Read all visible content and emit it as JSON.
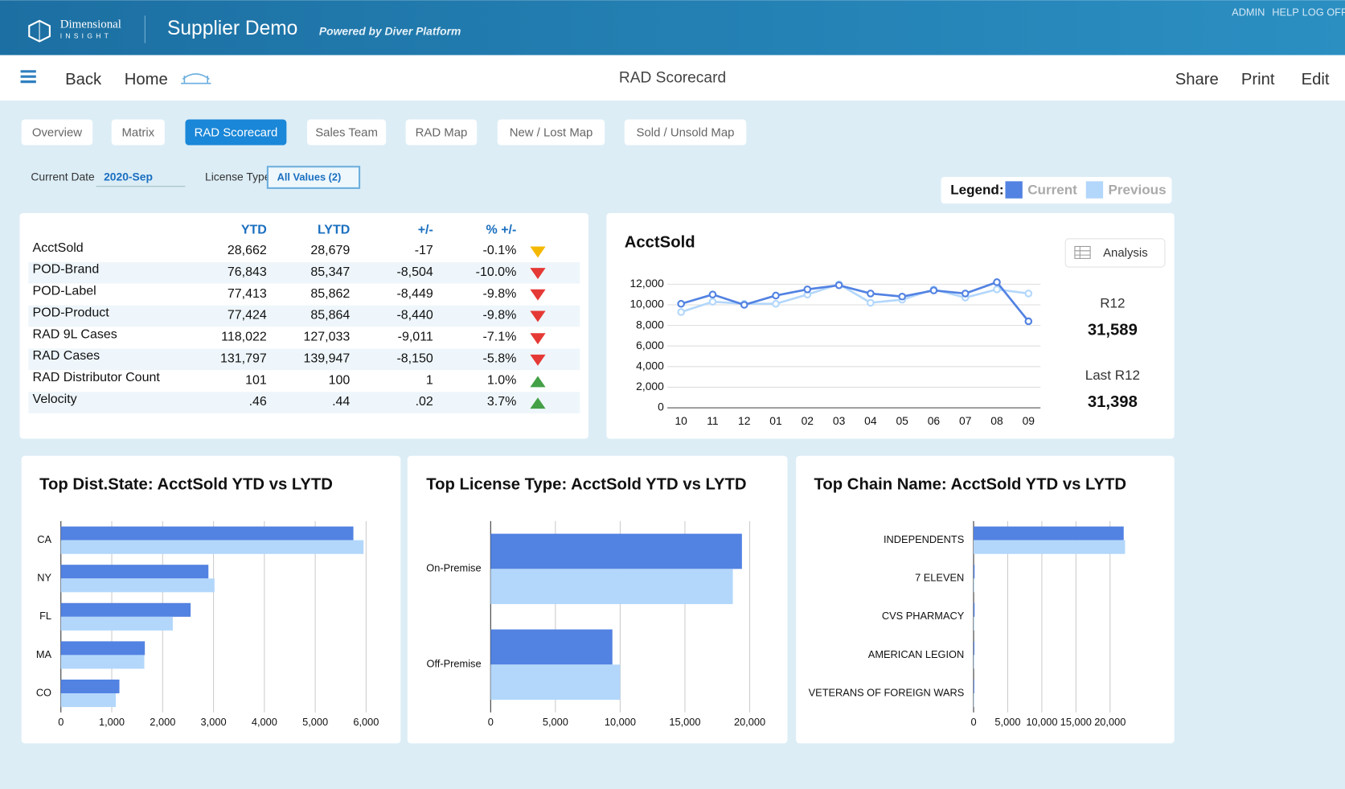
{
  "header": {
    "logo": "Dimensional",
    "logo_sub": "INSIGHT",
    "title": "Supplier Demo",
    "subtitle": "Powered by Diver Platform",
    "links": [
      "ADMIN",
      "HELP",
      "LOG OFF"
    ]
  },
  "nav": {
    "back": "Back",
    "home": "Home",
    "page_title": "RAD Scorecard",
    "actions": [
      "Share",
      "Print",
      "Edit"
    ]
  },
  "tabs": [
    "Overview",
    "Matrix",
    "RAD Scorecard",
    "Sales Team",
    "RAD Map",
    "New / Lost Map",
    "Sold / Unsold Map"
  ],
  "filters": {
    "date_label": "Current Date",
    "date_value": "2020-Sep",
    "license_label": "License Type",
    "license_value": "All Values (2)"
  },
  "legend": {
    "label": "Legend:",
    "current": "Current",
    "previous": "Previous"
  },
  "table": {
    "headers": [
      "YTD",
      "LYTD",
      "+/-",
      "% +/-"
    ],
    "rows": [
      [
        "AcctSold",
        "28,662",
        "28,679",
        "-17",
        "-0.1%"
      ],
      [
        "POD-Brand",
        "76,843",
        "85,347",
        "-8,504",
        "-10.0%"
      ],
      [
        "POD-Label",
        "77,413",
        "85,862",
        "-8,449",
        "-9.8%"
      ],
      [
        "POD-Product",
        "77,424",
        "85,864",
        "-8,440",
        "-9.8%"
      ],
      [
        "RAD 9L Cases",
        "118,022",
        "127,033",
        "-9,011",
        "-7.1%"
      ],
      [
        "RAD Cases",
        "131,797",
        "139,947",
        "-8,150",
        "-5.8%"
      ],
      [
        "RAD Distributor Count",
        "101",
        "100",
        "1",
        "1.0%"
      ],
      [
        "Velocity",
        ".46",
        ".44",
        ".02",
        "3.7%"
      ]
    ]
  },
  "summary": {
    "button": "Analysis",
    "r12_label": "R12",
    "r12_value": "31,589",
    "last_r12_label": "Last R12",
    "last_r12_value": "31,398"
  },
  "chart_data": [
    {
      "type": "line",
      "title": "AcctSold",
      "categories": [
        "10",
        "11",
        "12",
        "01",
        "02",
        "03",
        "04",
        "05",
        "06",
        "07",
        "08",
        "09"
      ],
      "series": [
        {
          "name": "Current",
          "color": "#5282e2",
          "values": [
            10100,
            11000,
            10000,
            10900,
            11500,
            11900,
            11100,
            10800,
            11400,
            11100,
            12200,
            8400
          ]
        },
        {
          "name": "Previous",
          "color": "#b3d7fb",
          "values": [
            9300,
            10300,
            10100,
            10100,
            11000,
            12000,
            10200,
            10500,
            11500,
            10700,
            11500,
            11100
          ]
        }
      ],
      "ylim": [
        0,
        13000
      ],
      "yticks": [
        0,
        {
          "value": 2000,
          "label": "2,000"
        },
        {
          "value": 4000,
          "label": "4,000"
        },
        {
          "value": 6000,
          "label": "6,000"
        },
        {
          "value": 8000,
          "label": "8,000"
        },
        {
          "value": 10000,
          "label": "10,000"
        },
        {
          "value": 12000,
          "label": "12,000"
        }
      ],
      "grid": true
    },
    {
      "type": "bar",
      "title": "Top Dist.State: AcctSold YTD vs LYTD",
      "categories": [
        "CA",
        "NY",
        "FL",
        "MA",
        "CO"
      ],
      "series": [
        {
          "color": "#5282e2",
          "values": [
            5750,
            2900,
            2550,
            1650,
            1150
          ]
        },
        {
          "color": "#b3d7fb",
          "values": [
            5950,
            3020,
            2200,
            1640,
            1080
          ]
        }
      ],
      "xlim": [
        0,
        6300
      ],
      "xticks": [
        0,
        {
          "value": 1000,
          "label": "1,000"
        },
        {
          "value": 2000,
          "label": "2,000"
        },
        {
          "value": 3000,
          "label": "3,000"
        },
        {
          "value": 4000,
          "label": "4,000"
        },
        {
          "value": 5000,
          "label": "5,000"
        },
        {
          "value": 6000,
          "label": "6,000"
        }
      ],
      "grid": true
    },
    {
      "type": "bar",
      "title": "Top License Type: AcctSold YTD vs LYTD",
      "categories": [
        "On-Premise",
        "Off-Premise"
      ],
      "series": [
        {
          "color": "#5282e2",
          "values": [
            19400,
            9400
          ]
        },
        {
          "color": "#b3d7fb",
          "values": [
            18700,
            10000
          ]
        }
      ],
      "xlim": [
        0,
        20000
      ],
      "xticks": [
        0,
        {
          "value": 5000,
          "label": "5,000"
        },
        {
          "value": 10000,
          "label": "10,000"
        },
        {
          "value": 15000,
          "label": "15,000"
        },
        {
          "value": 20000,
          "label": "20,000"
        }
      ],
      "grid": true
    },
    {
      "type": "bar",
      "title": "Top Chain Name: AcctSold YTD vs LYTD",
      "categories": [
        "INDEPENDENTS",
        "7 ELEVEN",
        "CVS PHARMACY",
        "AMERICAN LEGION",
        "VETERANS OF FOREIGN WARS"
      ],
      "series": [
        {
          "color": "#5282e2",
          "values": [
            22000,
            150,
            150,
            120,
            100
          ]
        },
        {
          "color": "#b3d7fb",
          "values": [
            22200,
            100,
            100,
            100,
            80
          ]
        }
      ],
      "xlim": [
        0,
        22500
      ],
      "xticks": [
        0,
        {
          "value": 5000,
          "label": "5,000"
        },
        {
          "value": 10000,
          "label": "10,000"
        },
        {
          "value": 15000,
          "label": "15,000"
        },
        {
          "value": 20000,
          "label": "20,000"
        }
      ],
      "grid": true
    }
  ]
}
